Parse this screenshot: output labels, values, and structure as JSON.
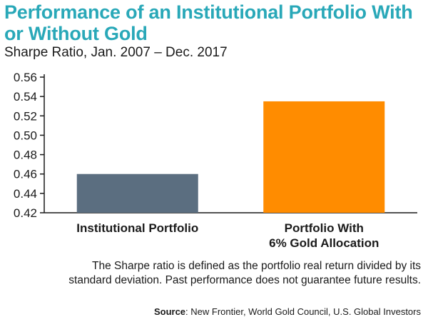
{
  "title": "Performance of an Institutional Portfolio With or Without Gold",
  "subtitle": "Sharpe Ratio, Jan. 2007 – Dec. 2017",
  "note": "The Sharpe ratio is defined as the portfolio real return divided by its standard deviation. Past performance does not guarantee future results.",
  "source_label": "Source",
  "source_text": ": New Frontier, World Gold Council, U.S. Global Investors",
  "colors": {
    "title": "#29a8b8",
    "bar_institutional": "#5b6e80",
    "bar_gold": "#ff8c00",
    "axis": "#1a1a1a"
  },
  "chart_data": {
    "type": "bar",
    "categories": [
      [
        "Institutional Portfolio"
      ],
      [
        "Portfolio With",
        "6% Gold Allocation"
      ]
    ],
    "values": [
      0.46,
      0.535
    ],
    "bar_colors": [
      "#5b6e80",
      "#ff8c00"
    ],
    "ylim": [
      0.42,
      0.56
    ],
    "yticks": [
      "0.42",
      "0.44",
      "0.46",
      "0.48",
      "0.50",
      "0.52",
      "0.54",
      "0.56"
    ],
    "grid": false,
    "legend": "none"
  }
}
